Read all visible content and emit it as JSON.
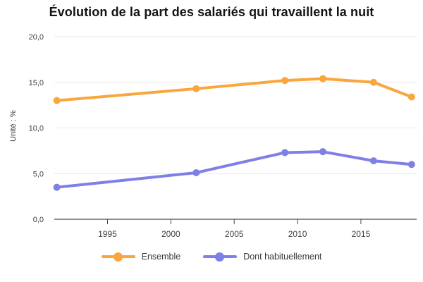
{
  "chart_data": {
    "type": "line",
    "title": "Évolution de la part des salariés qui travaillent la nuit",
    "xlabel": "",
    "ylabel": "Unité : %",
    "x": [
      1991,
      2002,
      2009,
      2012,
      2016,
      2019
    ],
    "series": [
      {
        "name": "Ensemble",
        "color": "#F9A63C",
        "values": [
          13.0,
          14.3,
          15.2,
          15.4,
          15.0,
          13.4
        ]
      },
      {
        "name": "Dont habituellement",
        "color": "#7E80E5",
        "values": [
          3.5,
          5.1,
          7.3,
          7.4,
          6.4,
          6.0
        ]
      }
    ],
    "xlim": [
      1990.8,
      2019.4
    ],
    "ylim": [
      0,
      20
    ],
    "xticks": [
      {
        "value": 1995,
        "label": "1995"
      },
      {
        "value": 2000,
        "label": "2000"
      },
      {
        "value": 2005,
        "label": "2005"
      },
      {
        "value": 2010,
        "label": "2010"
      },
      {
        "value": 2015,
        "label": "2015"
      }
    ],
    "yticks": [
      {
        "value": 0,
        "label": "0,0"
      },
      {
        "value": 5,
        "label": "5,0"
      },
      {
        "value": 10,
        "label": "10,0"
      },
      {
        "value": 15,
        "label": "15,0"
      },
      {
        "value": 20,
        "label": "20,0"
      }
    ],
    "grid": true,
    "legend_position": "bottom"
  }
}
